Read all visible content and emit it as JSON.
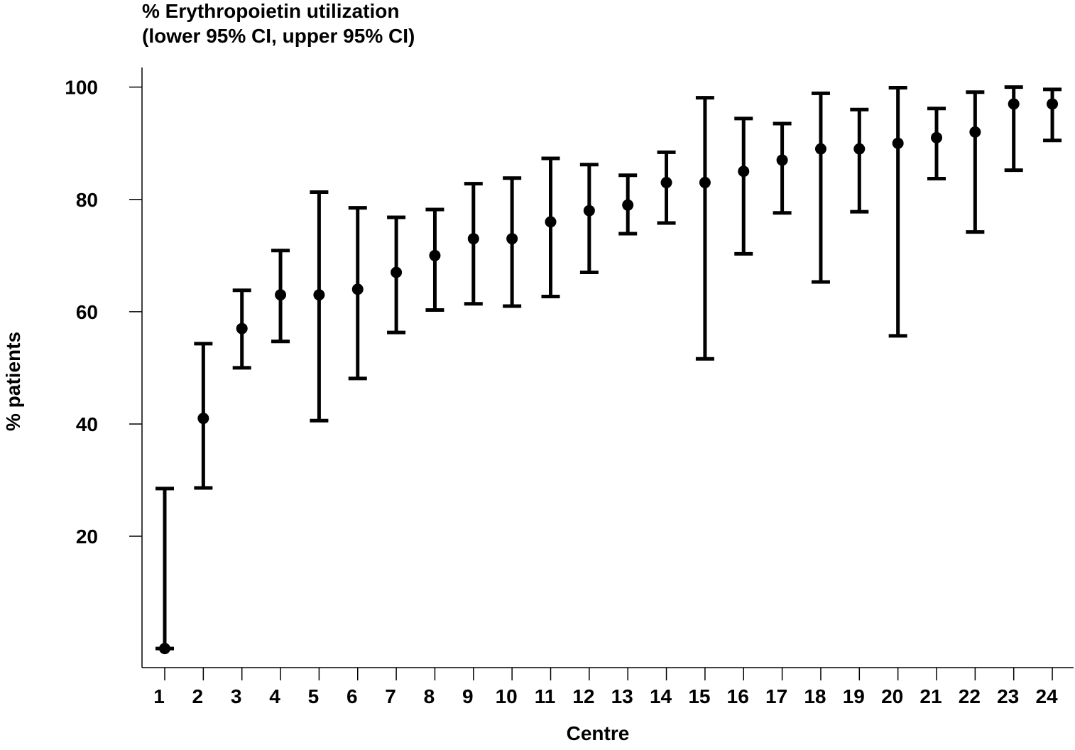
{
  "chart_data": {
    "type": "errorbar",
    "title": "% Erythropoietin utilization",
    "subtitle": "(lower 95% CI, upper 95% CI)",
    "x_label": "Centre",
    "y_label": "% patients",
    "categories": [
      "1",
      "2",
      "3",
      "4",
      "5",
      "6",
      "7",
      "8",
      "9",
      "10",
      "11",
      "12",
      "13",
      "14",
      "15",
      "16",
      "17",
      "18",
      "19",
      "20",
      "21",
      "22",
      "23",
      "24"
    ],
    "values": [
      0,
      41,
      57,
      63,
      63,
      64,
      67,
      70,
      73,
      73,
      76,
      78,
      79,
      83,
      83,
      85,
      87,
      89,
      89,
      90,
      91,
      92,
      97,
      97
    ],
    "lower": [
      0,
      28.6,
      50,
      54.7,
      40.6,
      48.1,
      56.3,
      60.3,
      61.4,
      61,
      62.7,
      67,
      73.9,
      75.8,
      51.6,
      70.3,
      77.6,
      65.3,
      77.8,
      55.7,
      83.7,
      74.2,
      85.2,
      90.5
    ],
    "upper": [
      28.5,
      54.3,
      63.8,
      70.9,
      81.3,
      78.5,
      76.8,
      78.2,
      82.8,
      83.8,
      87.3,
      86.2,
      84.3,
      88.4,
      98.1,
      94.4,
      93.5,
      98.9,
      96,
      99.9,
      96.2,
      99.1,
      100,
      99.6
    ],
    "color": "#000000",
    "ylim": [
      -3.4,
      103.5
    ],
    "yticks": [
      20,
      40,
      60,
      80,
      100
    ]
  }
}
